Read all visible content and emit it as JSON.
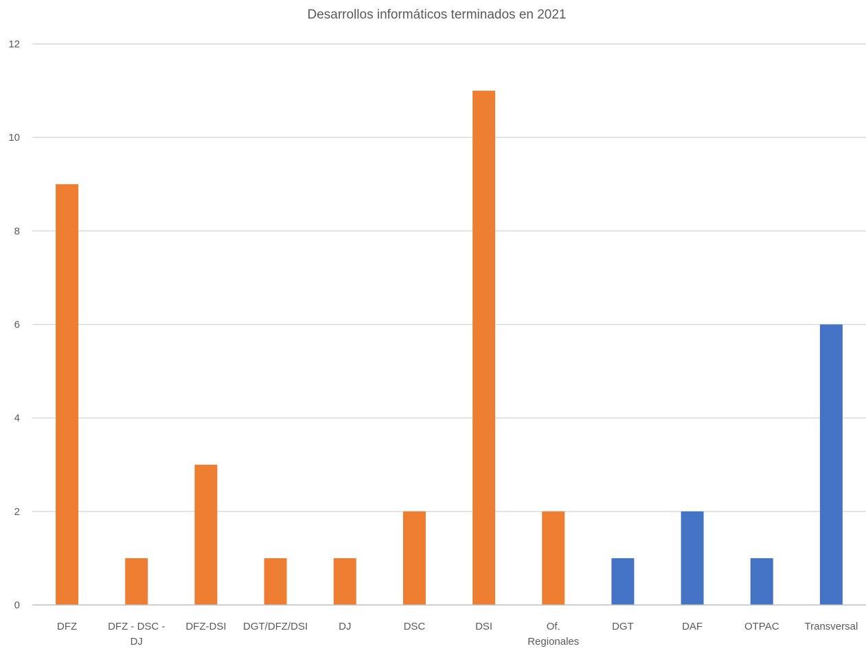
{
  "chart_data": {
    "type": "bar",
    "title": "Desarrollos informáticos terminados en 2021",
    "xlabel": "",
    "ylabel": "",
    "categories": [
      [
        "DFZ"
      ],
      [
        "DFZ - DSC -",
        "DJ"
      ],
      [
        "DFZ-DSI"
      ],
      [
        "DGT/DFZ/DSI"
      ],
      [
        "DJ"
      ],
      [
        "DSC"
      ],
      [
        "DSI"
      ],
      [
        "Of.",
        "Regionales"
      ],
      [
        "DGT"
      ],
      [
        "DAF"
      ],
      [
        "OTPAC"
      ],
      [
        "Transversal"
      ]
    ],
    "values": [
      9,
      1,
      3,
      1,
      1,
      2,
      11,
      2,
      1,
      2,
      1,
      6
    ],
    "bar_colors": [
      "#ed7d31",
      "#ed7d31",
      "#ed7d31",
      "#ed7d31",
      "#ed7d31",
      "#ed7d31",
      "#ed7d31",
      "#ed7d31",
      "#4472c4",
      "#4472c4",
      "#4472c4",
      "#4472c4"
    ],
    "ylim": [
      0,
      12
    ],
    "yticks": [
      "0",
      "2",
      "4",
      "6",
      "8",
      "10",
      "12"
    ],
    "grid": true,
    "legend": "none"
  }
}
